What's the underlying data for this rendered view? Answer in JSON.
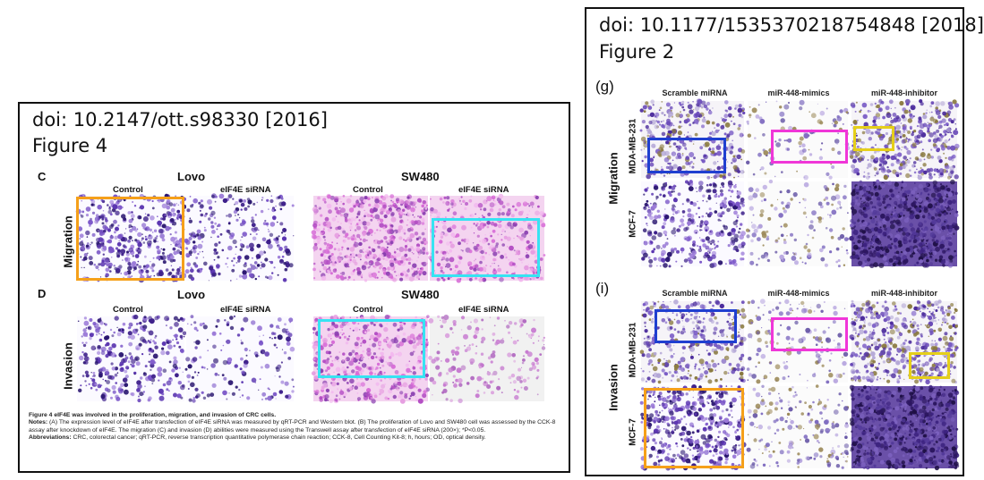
{
  "colors": {
    "orange": "#f5a01a",
    "cyan": "#37e3f2",
    "blue": "#1f3fd0",
    "magenta": "#f036d8",
    "yellow": "#e5cf1a",
    "stain_purple": "#4a2a9a",
    "stain_pink": "#d977d8"
  },
  "left": {
    "doi": "doi: 10.2147/ott.s98330 [2016]",
    "figure": "Figure 4",
    "sections": [
      {
        "letter": "C",
        "row_label": "Migration",
        "groups": [
          {
            "title": "Lovo",
            "cols": [
              "Control",
              "eIF4E siRNA"
            ]
          },
          {
            "title": "SW480",
            "cols": [
              "Control",
              "eIF4E siRNA"
            ]
          }
        ]
      },
      {
        "letter": "D",
        "row_label": "Invasion",
        "groups": [
          {
            "title": "Lovo",
            "cols": [
              "Control",
              "eIF4E siRNA"
            ]
          },
          {
            "title": "SW480",
            "cols": [
              "Control",
              "eIF4E siRNA"
            ]
          }
        ]
      }
    ],
    "caption": {
      "line1": "Figure 4 eIF4E was involved in the proliferation, migration, and invasion of CRC cells.",
      "notes_label": "Notes:",
      "notes_text": "(A) The expression level of eIF4E after transfection of eIF4E siRNA was measured by qRT-PCR and Western blot. (B) The proliferation of Lovo and SW480 cell was assessed by the CCK-8 assay after knockdown of eIF4E. The migration (C) and invasion (D) abilities were measured using the Transwell assay after transfection of eIF4E siRNA (200×); *P<0.05.",
      "abbr_label": "Abbreviations:",
      "abbr_text": "CRC, colorectal cancer; qRT-PCR, reverse transcription quantitative polymerase chain reaction; CCK-8, Cell Counting Kit-8; h, hours; OD, optical density."
    }
  },
  "right": {
    "doi": "doi: 10.1177/1535370218754848 [2018]",
    "figure": "Figure 2",
    "sections": [
      {
        "letter": "(g)",
        "row_label": "Migration",
        "cols": [
          "Scramble miRNA",
          "miR-448-mimics",
          "miR-448-inhibitor"
        ],
        "rows": [
          "MDA-MB-231",
          "MCF-7"
        ]
      },
      {
        "letter": "(i)",
        "row_label": "Invasion",
        "cols": [
          "Scramble miRNA",
          "miR-448-mimics",
          "miR-448-inhibitor"
        ],
        "rows": [
          "MDA-MB-231",
          "MCF-7"
        ]
      }
    ]
  }
}
